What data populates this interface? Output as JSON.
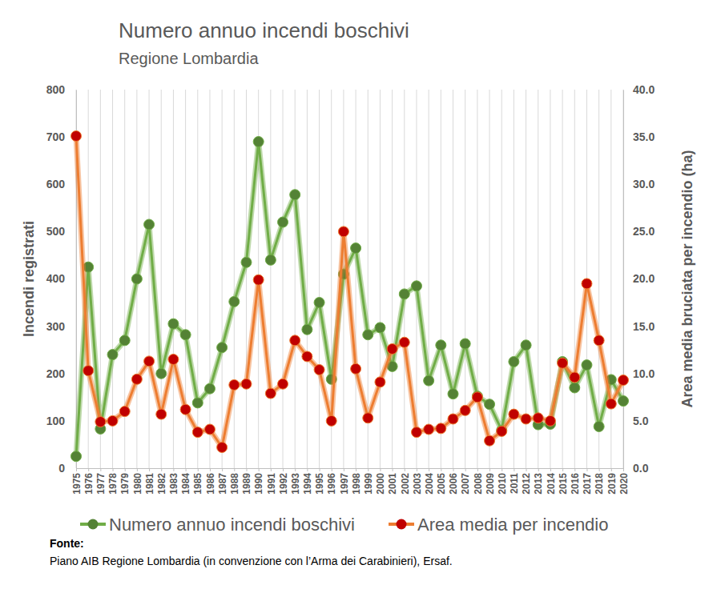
{
  "chart_data": {
    "type": "line",
    "title": "Numero annuo incendi boschivi",
    "subtitle": "Regione Lombardia",
    "y_label": "Incendi registrati",
    "y2_label": "Area media bruciata per incendio (ha)",
    "source_title": "Fonte:",
    "source": "Piano AIB Regione Lombardia (in convenzione con l’Arma dei Carabinieri),  Ersaf.",
    "categories": [
      "1975",
      "1976",
      "1977",
      "1978",
      "1979",
      "1980",
      "1981",
      "1982",
      "1983",
      "1984",
      "1985",
      "1986",
      "1987",
      "1988",
      "1989",
      "1990",
      "1991",
      "1992",
      "1993",
      "1994",
      "1995",
      "1996",
      "1997",
      "1998",
      "1999",
      "2000",
      "2001",
      "2002",
      "2003",
      "2004",
      "2005",
      "2006",
      "2007",
      "2008",
      "2009",
      "2010",
      "2011",
      "2012",
      "2013",
      "2014",
      "2015",
      "2016",
      "2017",
      "2018",
      "2019",
      "2020"
    ],
    "ylim": [
      0,
      800
    ],
    "yticks": [
      0,
      100,
      200,
      300,
      400,
      500,
      600,
      700,
      800
    ],
    "y2lim": [
      0,
      40
    ],
    "y2ticks": [
      {
        "value": 0,
        "label": "0.0"
      },
      {
        "value": 5,
        "label": "5.0"
      },
      {
        "value": 10,
        "label": "10.0"
      },
      {
        "value": 15,
        "label": "15.0"
      },
      {
        "value": 20,
        "label": "20.0"
      },
      {
        "value": 25,
        "label": "25.0"
      },
      {
        "value": 30,
        "label": "30.0"
      },
      {
        "value": 35,
        "label": "35.0"
      },
      {
        "value": 40,
        "label": "40.0"
      }
    ],
    "grid": true,
    "legend": "bottom",
    "series": [
      {
        "name": "Numero annuo incendi boschivi",
        "color": "#70ad47",
        "marker": "circle",
        "values": [
          25,
          425,
          83,
          240,
          270,
          400,
          515,
          200,
          305,
          282,
          138,
          168,
          255,
          352,
          435,
          690,
          440,
          520,
          578,
          293,
          350,
          188,
          410,
          465,
          282,
          297,
          215,
          368,
          385,
          185,
          260,
          157,
          263,
          152,
          135,
          80,
          225,
          260,
          92,
          93,
          225,
          170,
          218,
          88,
          187,
          142
        ]
      },
      {
        "name": "Area media per incendio",
        "color": "#ed7d31",
        "marker": "circle",
        "axis": "y2",
        "values": [
          35.1,
          10.3,
          4.9,
          5.0,
          6.0,
          9.4,
          11.3,
          5.7,
          11.5,
          6.2,
          3.8,
          4.1,
          2.2,
          8.8,
          8.9,
          19.9,
          7.9,
          8.9,
          13.5,
          11.8,
          10.4,
          5.0,
          25.0,
          10.5,
          5.3,
          9.1,
          12.6,
          13.3,
          3.8,
          4.1,
          4.2,
          5.2,
          6.1,
          7.5,
          2.9,
          3.9,
          5.7,
          5.2,
          5.3,
          5.0,
          11.1,
          9.6,
          19.5,
          13.5,
          6.8,
          9.3
        ]
      }
    ]
  }
}
